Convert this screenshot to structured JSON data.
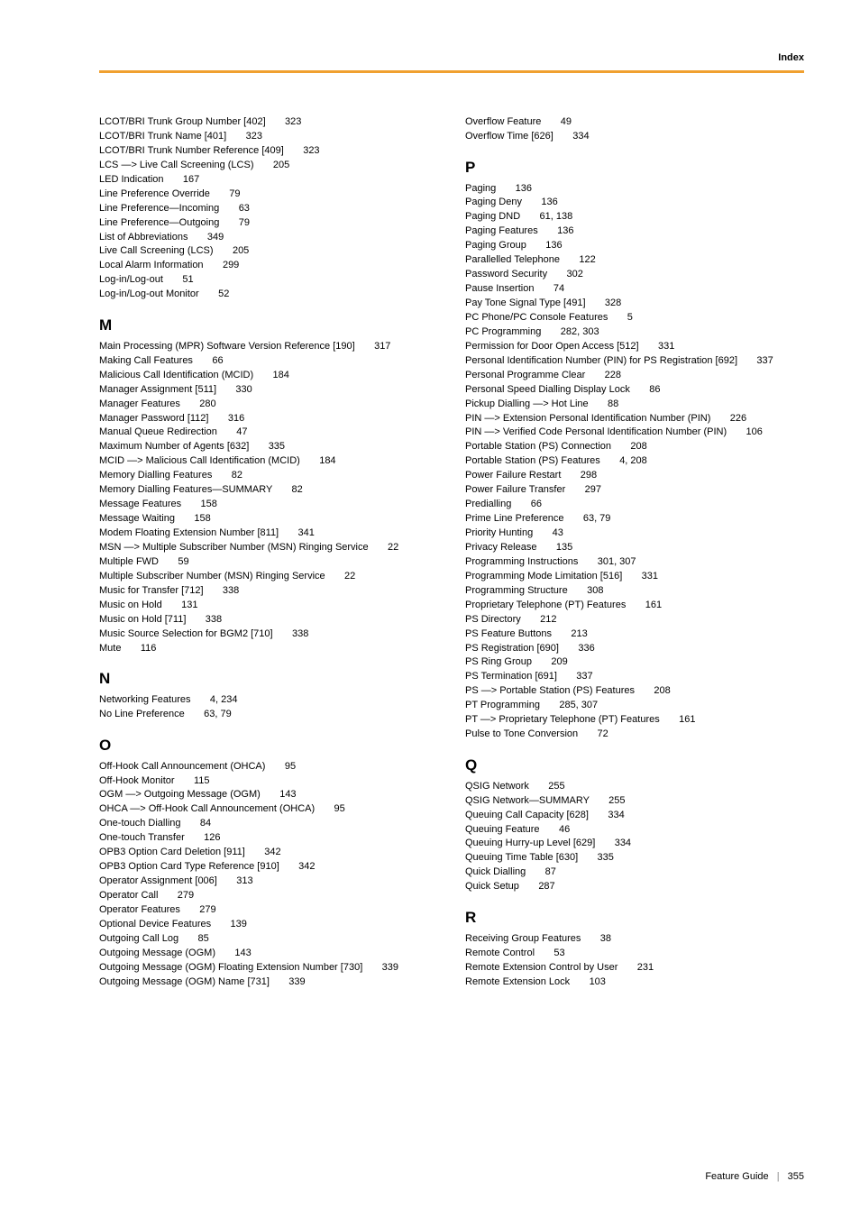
{
  "header": {
    "label": "Index"
  },
  "footer": {
    "guide": "Feature Guide",
    "page": "355"
  },
  "colors": {
    "rule": "#f0a030"
  },
  "left": {
    "block1": [
      "LCOT/BRI Trunk Group Number [402]       323",
      "LCOT/BRI Trunk Name [401]       323",
      "LCOT/BRI Trunk Number Reference [409]       323",
      "LCS —> Live Call Screening (LCS)       205",
      "LED Indication       167",
      "Line Preference Override       79",
      "Line Preference—Incoming       63",
      "Line Preference—Outgoing       79",
      "List of Abbreviations       349",
      "Live Call Screening (LCS)       205",
      "Local Alarm Information       299",
      "Log-in/Log-out       51",
      "Log-in/Log-out Monitor       52"
    ],
    "M": [
      "Main Processing (MPR) Software Version Reference [190]       317",
      "Making Call Features       66",
      "Malicious Call Identification (MCID)       184",
      "Manager Assignment [511]       330",
      "Manager Features       280",
      "Manager Password [112]       316",
      "Manual Queue Redirection       47",
      "Maximum Number of Agents [632]       335",
      "MCID —> Malicious Call Identification (MCID)       184",
      "Memory Dialling Features       82",
      "Memory Dialling Features—SUMMARY       82",
      "Message Features       158",
      "Message Waiting       158",
      "Modem Floating Extension Number [811]       341",
      "MSN —> Multiple Subscriber Number (MSN) Ringing Service       22",
      "Multiple FWD       59",
      "Multiple Subscriber Number (MSN) Ringing Service       22",
      "Music for Transfer [712]       338",
      "Music on Hold       131",
      "Music on Hold [711]       338",
      "Music Source Selection for BGM2 [710]       338",
      "Mute       116"
    ],
    "N": [
      "Networking Features       4, 234",
      "No Line Preference       63, 79"
    ],
    "O": [
      "Off-Hook Call Announcement (OHCA)       95",
      "Off-Hook Monitor       115",
      "OGM —> Outgoing Message (OGM)       143",
      "OHCA —> Off-Hook Call Announcement (OHCA)       95",
      "One-touch Dialling       84",
      "One-touch Transfer       126",
      "OPB3 Option Card Deletion [911]       342",
      "OPB3 Option Card Type Reference [910]       342",
      "Operator Assignment [006]       313",
      "Operator Call       279",
      "Operator Features       279",
      "Optional Device Features       139",
      "Outgoing Call Log       85",
      "Outgoing Message (OGM)       143",
      "Outgoing Message (OGM) Floating Extension Number [730]       339",
      "Outgoing Message (OGM) Name [731]       339"
    ]
  },
  "right": {
    "block1": [
      "Overflow Feature       49",
      "Overflow Time [626]       334"
    ],
    "P": [
      "Paging       136",
      "Paging Deny       136",
      "Paging DND       61, 138",
      "Paging Features       136",
      "Paging Group       136",
      "Parallelled Telephone       122",
      "Password Security       302",
      "Pause Insertion       74",
      "Pay Tone Signal Type [491]       328",
      "PC Phone/PC Console Features       5",
      "PC Programming       282, 303",
      "Permission for Door Open Access [512]       331",
      "Personal Identification Number (PIN) for PS Registration [692]       337",
      "Personal Programme Clear       228",
      "Personal Speed Dialling Display Lock       86",
      "Pickup Dialling —> Hot Line       88",
      "PIN —> Extension Personal Identification Number (PIN)       226",
      "PIN —> Verified Code Personal Identification Number (PIN)       106",
      "Portable Station (PS) Connection       208",
      "Portable Station (PS) Features       4, 208",
      "Power Failure Restart       298",
      "Power Failure Transfer       297",
      "Predialling       66",
      "Prime Line Preference       63, 79",
      "Priority Hunting       43",
      "Privacy Release       135",
      "Programming Instructions       301, 307",
      "Programming Mode Limitation [516]       331",
      "Programming Structure       308",
      "Proprietary Telephone (PT) Features       161",
      "PS Directory       212",
      "PS Feature Buttons       213",
      "PS Registration [690]       336",
      "PS Ring Group       209",
      "PS Termination [691]       337",
      "PS —> Portable Station (PS) Features       208",
      "PT Programming       285, 307",
      "PT —> Proprietary Telephone (PT) Features       161",
      "Pulse to Tone Conversion       72"
    ],
    "Q": [
      "QSIG Network       255",
      "QSIG Network—SUMMARY       255",
      "Queuing Call Capacity [628]       334",
      "Queuing Feature       46",
      "Queuing Hurry-up Level [629]       334",
      "Queuing Time Table [630]       335",
      "Quick Dialling       87",
      "Quick Setup       287"
    ],
    "R": [
      "Receiving Group Features       38",
      "Remote Control       53",
      "Remote Extension Control by User       231",
      "Remote Extension Lock       103"
    ]
  }
}
